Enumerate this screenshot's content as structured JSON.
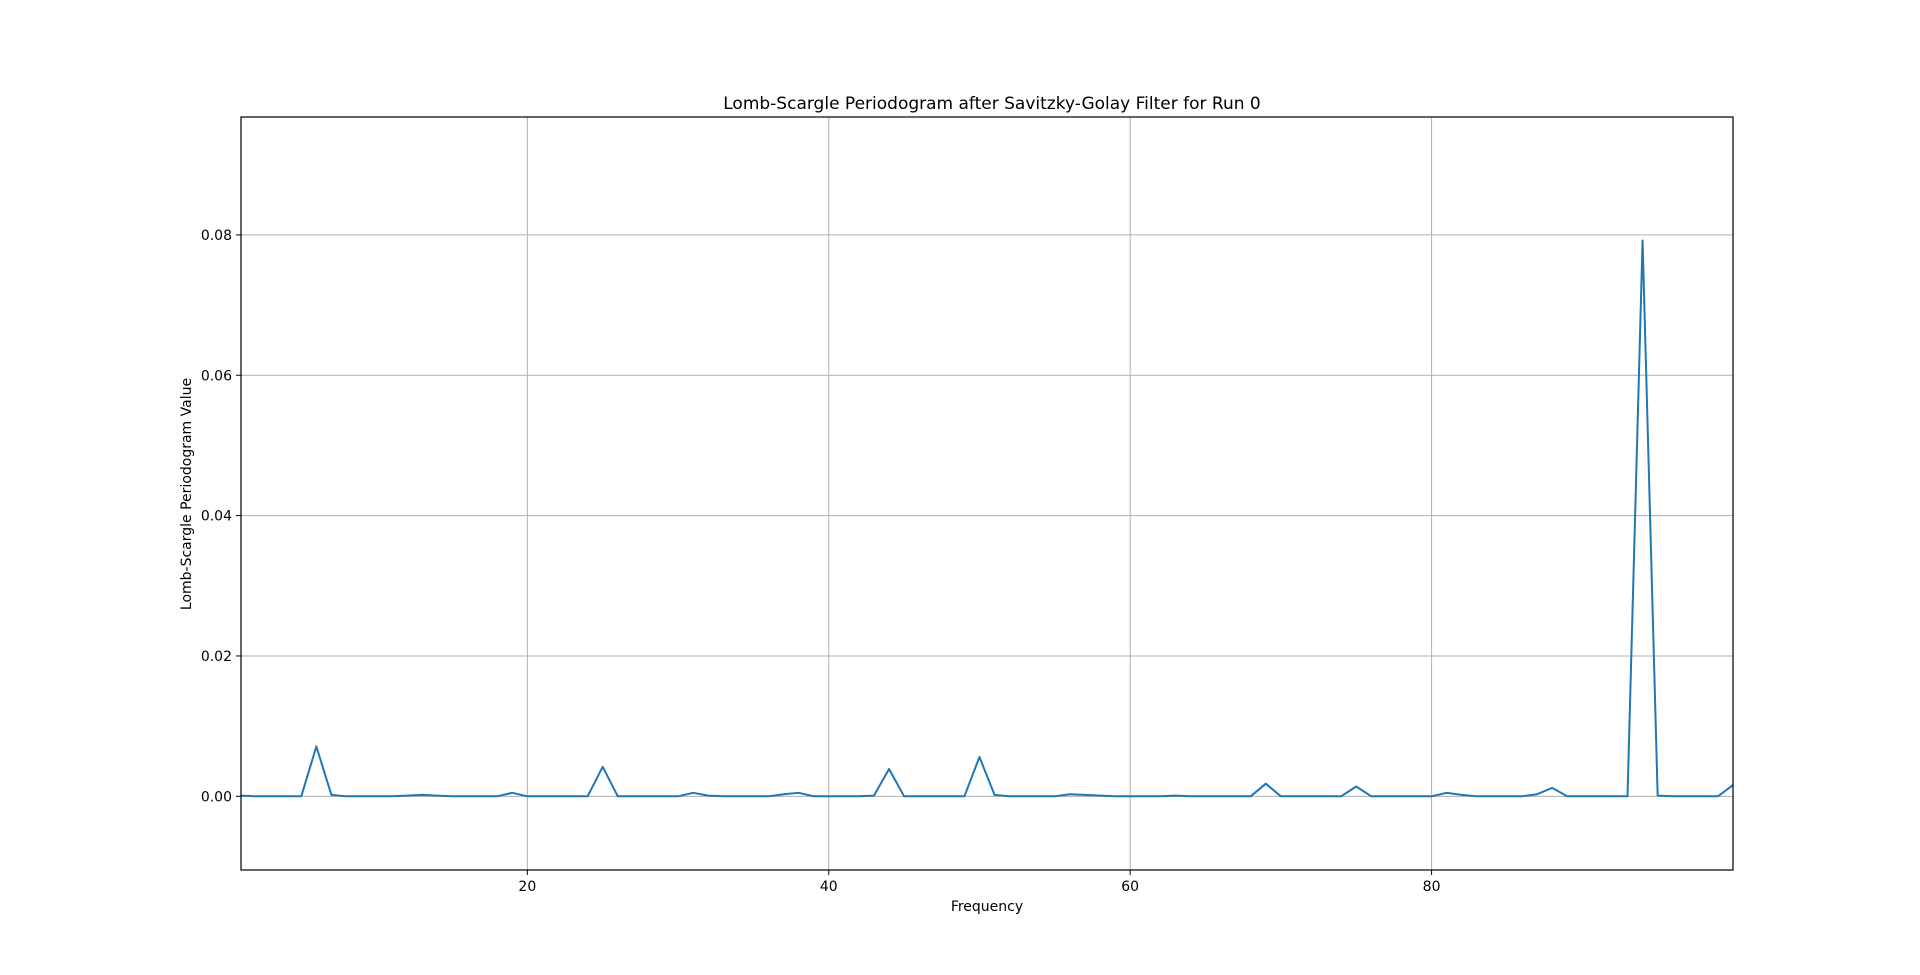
{
  "chart_data": {
    "type": "line",
    "title": "Lomb-Scargle Periodogram after Savitzky-Golay Filter for Run 0",
    "xlabel": "Frequency",
    "ylabel": "Lomb-Scargle Periodogram Value",
    "xlim": [
      1,
      100
    ],
    "ylim": [
      -0.0105,
      0.0968
    ],
    "grid": true,
    "x_ticks": [
      20,
      40,
      60,
      80
    ],
    "y_ticks": [
      0.0,
      0.02,
      0.04,
      0.06,
      0.08
    ],
    "x_tick_labels": [
      "20",
      "40",
      "60",
      "80"
    ],
    "y_tick_labels": [
      "0.00",
      "0.02",
      "0.04",
      "0.06",
      "0.08"
    ],
    "line_color": "#1f77b4",
    "series": [
      {
        "x": [
          1,
          2,
          3,
          4,
          5,
          6,
          7,
          8,
          9,
          10,
          11,
          12,
          13,
          14,
          15,
          16,
          17,
          18,
          19,
          20,
          21,
          22,
          23,
          24,
          25,
          26,
          27,
          28,
          29,
          30,
          31,
          32,
          33,
          34,
          35,
          36,
          37,
          38,
          39,
          40,
          41,
          42,
          43,
          44,
          45,
          46,
          47,
          48,
          49,
          50,
          51,
          52,
          53,
          54,
          55,
          56,
          57,
          58,
          59,
          60,
          61,
          62,
          63,
          64,
          65,
          66,
          67,
          68,
          69,
          70,
          71,
          72,
          73,
          74,
          75,
          76,
          77,
          78,
          79,
          80,
          81,
          82,
          83,
          84,
          85,
          86,
          87,
          88,
          89,
          90,
          91,
          92,
          93,
          94,
          95,
          96,
          97,
          98,
          99,
          100
        ],
        "y": [
          0.0001,
          0.0,
          0.0,
          0.0,
          0.0,
          0.0071,
          0.0002,
          0.0,
          0.0,
          0.0,
          0.0,
          0.0001,
          0.0002,
          0.0001,
          0.0,
          0.0,
          0.0,
          0.0,
          0.0005,
          0.0,
          0.0,
          0.0,
          0.0,
          0.0,
          0.0042,
          0.0,
          0.0,
          0.0,
          0.0,
          0.0,
          0.0005,
          0.0001,
          0.0,
          0.0,
          0.0,
          0.0,
          0.0003,
          0.0005,
          0.0,
          0.0,
          0.0,
          0.0,
          0.0001,
          0.0039,
          0.0,
          0.0,
          0.0,
          0.0,
          0.0,
          0.0056,
          0.0002,
          0.0,
          0.0,
          0.0,
          0.0,
          0.0003,
          0.0002,
          0.0001,
          0.0,
          0.0,
          0.0,
          0.0,
          0.0001,
          0.0,
          0.0,
          0.0,
          0.0,
          0.0,
          0.0018,
          0.0,
          0.0,
          0.0,
          0.0,
          0.0,
          0.0014,
          0.0,
          0.0,
          0.0,
          0.0,
          0.0,
          0.0005,
          0.0002,
          0.0,
          0.0,
          0.0,
          0.0,
          0.0003,
          0.0012,
          0.0,
          0.0,
          0.0,
          0.0,
          0.0,
          0.0792,
          0.0001,
          0.0,
          0.0,
          0.0,
          0.0,
          0.0016
        ]
      }
    ]
  }
}
